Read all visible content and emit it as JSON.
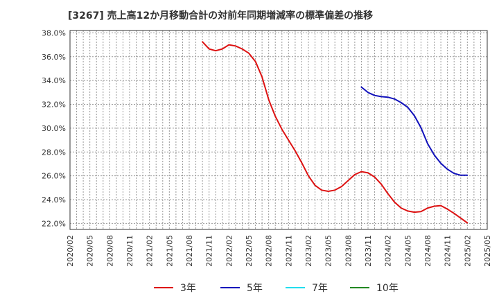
{
  "title": "[3267]  売上高12か月移動合計の対前年同期増減率の標準偏差の推移",
  "chart_data": {
    "type": "line",
    "title": "[3267]  売上高12か月移動合計の対前年同期増減率の標準偏差の推移",
    "xlabel": "",
    "ylabel": "",
    "ylim": [
      21.5,
      38.2
    ],
    "y_ticks": [
      "22.0%",
      "24.0%",
      "26.0%",
      "28.0%",
      "30.0%",
      "32.0%",
      "34.0%",
      "36.0%",
      "38.0%"
    ],
    "x_ticks": [
      "2020/02",
      "2020/05",
      "2020/08",
      "2020/11",
      "2021/02",
      "2021/05",
      "2021/08",
      "2021/11",
      "2022/02",
      "2022/05",
      "2022/08",
      "2022/11",
      "2023/02",
      "2023/05",
      "2023/08",
      "2023/11",
      "2024/02",
      "2024/05",
      "2024/08",
      "2024/11",
      "2025/02",
      "2025/05"
    ],
    "grid": true,
    "legend_position": "bottom",
    "series": [
      {
        "name": "3年",
        "color": "#dd1111",
        "points": [
          [
            "2021/10",
            37.25
          ],
          [
            "2021/11",
            36.65
          ],
          [
            "2021/12",
            36.5
          ],
          [
            "2022/01",
            36.65
          ],
          [
            "2022/02",
            37.0
          ],
          [
            "2022/03",
            36.9
          ],
          [
            "2022/04",
            36.65
          ],
          [
            "2022/05",
            36.3
          ],
          [
            "2022/06",
            35.6
          ],
          [
            "2022/07",
            34.3
          ],
          [
            "2022/08",
            32.4
          ],
          [
            "2022/09",
            31.0
          ],
          [
            "2022/10",
            29.9
          ],
          [
            "2022/11",
            29.0
          ],
          [
            "2022/12",
            28.1
          ],
          [
            "2023/01",
            27.1
          ],
          [
            "2023/02",
            26.0
          ],
          [
            "2023/03",
            25.2
          ],
          [
            "2023/04",
            24.8
          ],
          [
            "2023/05",
            24.7
          ],
          [
            "2023/06",
            24.8
          ],
          [
            "2023/07",
            25.1
          ],
          [
            "2023/08",
            25.6
          ],
          [
            "2023/09",
            26.1
          ],
          [
            "2023/10",
            26.35
          ],
          [
            "2023/11",
            26.25
          ],
          [
            "2023/12",
            25.9
          ],
          [
            "2024/01",
            25.3
          ],
          [
            "2024/02",
            24.5
          ],
          [
            "2024/03",
            23.8
          ],
          [
            "2024/04",
            23.3
          ],
          [
            "2024/05",
            23.05
          ],
          [
            "2024/06",
            22.95
          ],
          [
            "2024/07",
            23.0
          ],
          [
            "2024/08",
            23.3
          ],
          [
            "2024/09",
            23.45
          ],
          [
            "2024/10",
            23.5
          ],
          [
            "2024/11",
            23.2
          ],
          [
            "2024/12",
            22.85
          ],
          [
            "2025/01",
            22.45
          ],
          [
            "2025/02",
            22.05
          ]
        ]
      },
      {
        "name": "5年",
        "color": "#1111bb",
        "points": [
          [
            "2023/10",
            33.45
          ],
          [
            "2023/11",
            33.0
          ],
          [
            "2023/12",
            32.75
          ],
          [
            "2024/01",
            32.65
          ],
          [
            "2024/02",
            32.6
          ],
          [
            "2024/03",
            32.45
          ],
          [
            "2024/04",
            32.15
          ],
          [
            "2024/05",
            31.75
          ],
          [
            "2024/06",
            31.05
          ],
          [
            "2024/07",
            30.05
          ],
          [
            "2024/08",
            28.7
          ],
          [
            "2024/09",
            27.75
          ],
          [
            "2024/10",
            27.05
          ],
          [
            "2024/11",
            26.55
          ],
          [
            "2024/12",
            26.2
          ],
          [
            "2025/01",
            26.05
          ],
          [
            "2025/02",
            26.05
          ]
        ]
      },
      {
        "name": "7年",
        "color": "#22ddee",
        "points": []
      },
      {
        "name": "10年",
        "color": "#228822",
        "points": []
      }
    ]
  }
}
